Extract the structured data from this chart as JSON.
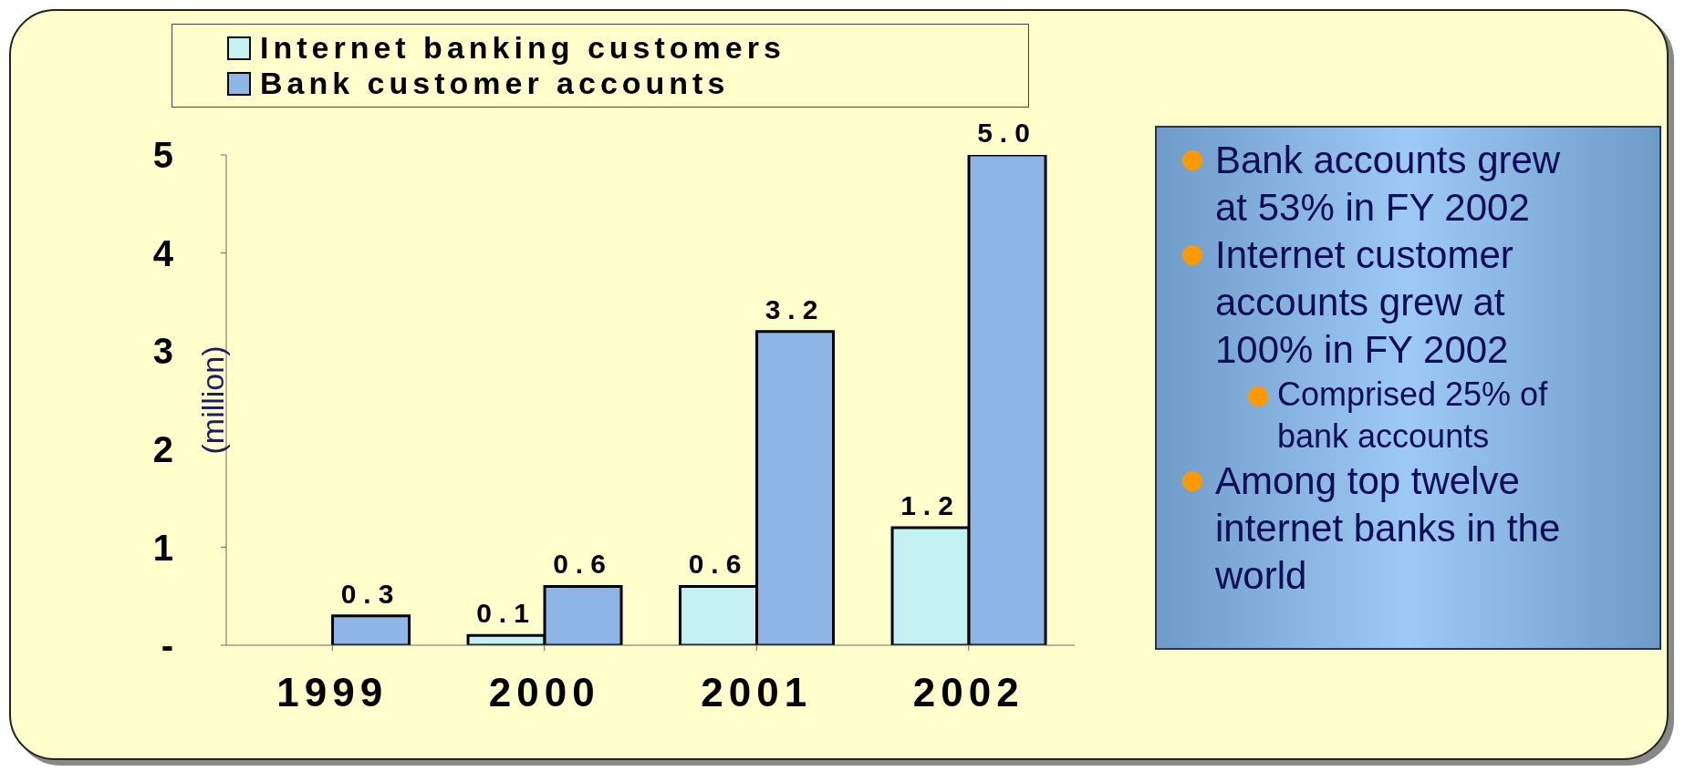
{
  "chart_data": {
    "type": "bar",
    "categories": [
      "1999",
      "2000",
      "2001",
      "2002"
    ],
    "series": [
      {
        "name": "Internet banking customers",
        "color": "#c4f2f2",
        "values": [
          null,
          0.1,
          0.6,
          1.2
        ],
        "value_labels": [
          null,
          "0.1",
          "0.6",
          "1.2"
        ]
      },
      {
        "name": "Bank customer accounts",
        "color": "#8db6e6",
        "values": [
          0.3,
          0.6,
          3.2,
          5.0
        ],
        "value_labels": [
          "0.3",
          "0.6",
          "3.2",
          "5.0"
        ]
      }
    ],
    "ylabel": "(million)",
    "ylim": [
      0,
      5
    ],
    "yticks": [
      {
        "value": 0,
        "label": "-"
      },
      1,
      2,
      3,
      4,
      5
    ],
    "grid": false,
    "legend": "top",
    "annotations": [
      "Bank accounts grew at 53% in FY 2002",
      "Internet customer accounts grew at 100% in FY 2002",
      "Comprised 25% of bank accounts",
      "Among top twelve internet banks in the world"
    ]
  }
}
